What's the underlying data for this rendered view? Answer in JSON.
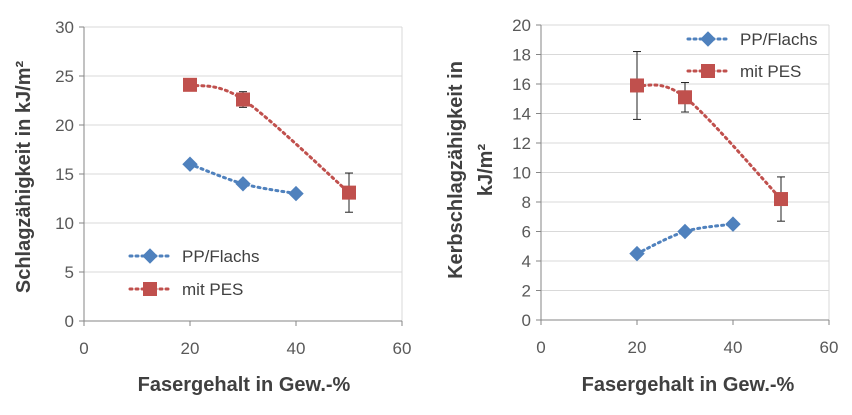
{
  "chart_data": [
    {
      "type": "scatter",
      "title": "",
      "xlabel": "Fasergehalt in Gew.-%",
      "ylabel": "Schlagzähigkeit in kJ/m²",
      "xlim": [
        0,
        60
      ],
      "ylim": [
        0,
        30
      ],
      "xticks": [
        "0",
        "20",
        "40",
        "60"
      ],
      "yticks": [
        "0",
        "5",
        "10",
        "15",
        "20",
        "25",
        "30"
      ],
      "grid": "horizontal",
      "legend_position": "bottom-left",
      "series": [
        {
          "name": "PP/Flachs",
          "marker": "diamond",
          "color": "#4f81bd",
          "x": [
            20,
            30,
            40
          ],
          "y": [
            16,
            14,
            13
          ],
          "error": [
            0,
            0,
            0
          ]
        },
        {
          "name": "mit PES",
          "marker": "square",
          "color": "#c0504d",
          "x": [
            20,
            30,
            50
          ],
          "y": [
            24.1,
            22.6,
            13.1
          ],
          "error": [
            0,
            0.8,
            2.0
          ]
        }
      ]
    },
    {
      "type": "scatter",
      "title": "",
      "xlabel": "Fasergehalt in Gew.-%",
      "ylabel_lines": [
        "Kerbschlagzähigkeit in",
        "kJ/m²"
      ],
      "xlim": [
        0,
        60
      ],
      "ylim": [
        0,
        20
      ],
      "xticks": [
        "0",
        "20",
        "40",
        "60"
      ],
      "yticks": [
        "0",
        "2",
        "4",
        "6",
        "8",
        "10",
        "12",
        "14",
        "16",
        "18",
        "20"
      ],
      "grid": "horizontal",
      "legend_position": "top-right",
      "series": [
        {
          "name": "PP/Flachs",
          "marker": "diamond",
          "color": "#4f81bd",
          "x": [
            20,
            30,
            40
          ],
          "y": [
            4.5,
            6.0,
            6.5
          ],
          "error": [
            0,
            0,
            0
          ]
        },
        {
          "name": "mit PES",
          "marker": "square",
          "color": "#c0504d",
          "x": [
            20,
            30,
            50
          ],
          "y": [
            15.9,
            15.1,
            8.2
          ],
          "error": [
            2.3,
            1.0,
            1.5
          ]
        }
      ]
    }
  ]
}
